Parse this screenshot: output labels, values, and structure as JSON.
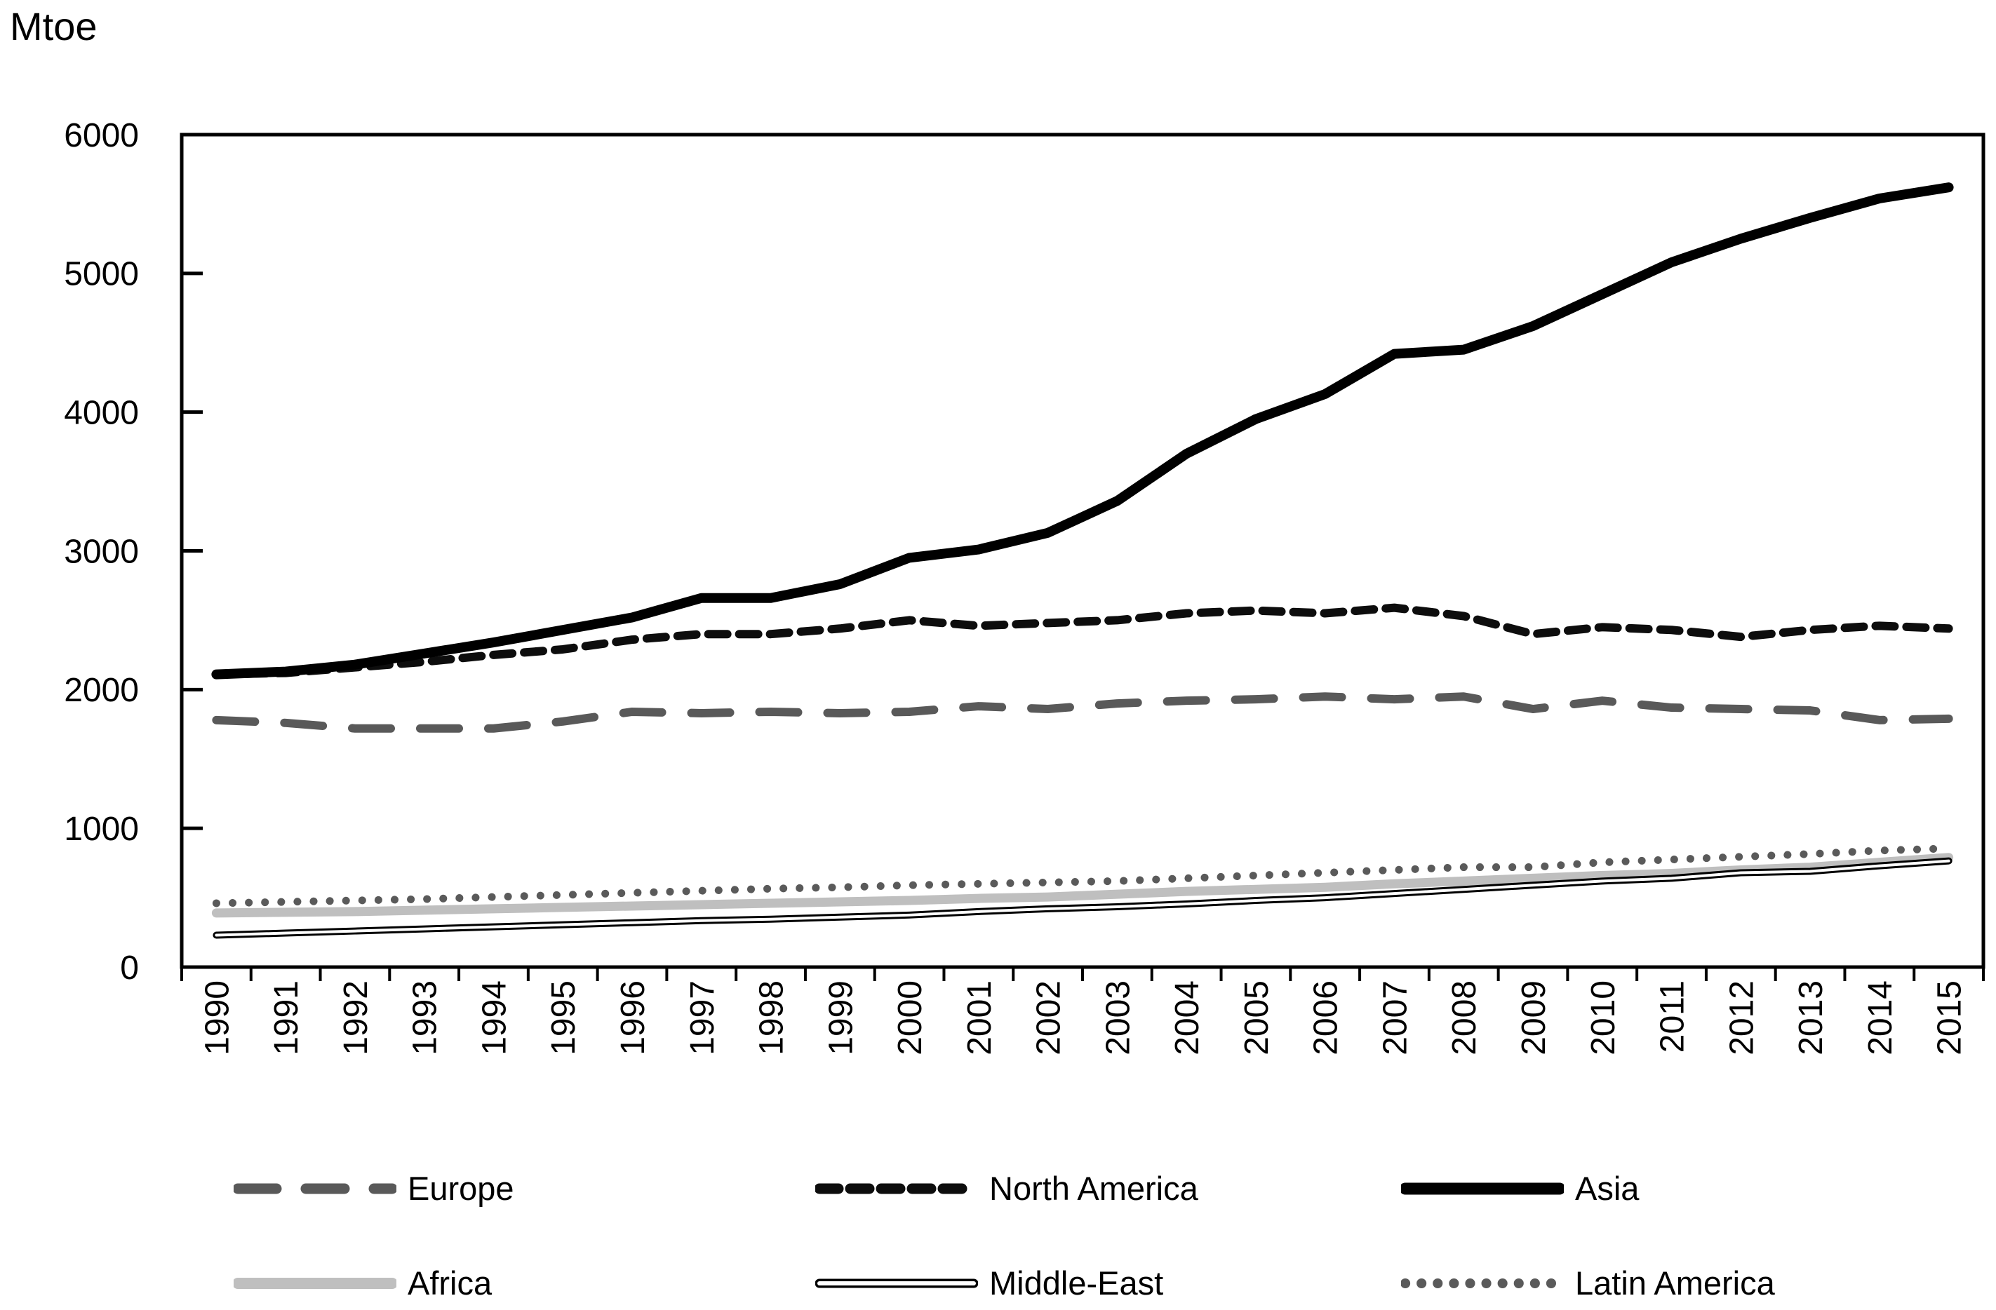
{
  "unit_label": "Mtoe",
  "chart_data": {
    "type": "line",
    "title": "",
    "ylabel": "Mtoe",
    "xlabel": "",
    "x": [
      "1990",
      "1991",
      "1992",
      "1993",
      "1994",
      "1995",
      "1996",
      "1997",
      "1998",
      "1999",
      "2000",
      "2001",
      "2002",
      "2003",
      "2004",
      "2005",
      "2006",
      "2007",
      "2008",
      "2009",
      "2010",
      "2011",
      "2012",
      "2013",
      "2014",
      "2015"
    ],
    "ylim": [
      0,
      6000
    ],
    "y_ticks": [
      0,
      1000,
      2000,
      3000,
      4000,
      5000,
      6000
    ],
    "grid": false,
    "legend_position": "bottom",
    "series": [
      {
        "name": "Africa",
        "color": "#bfbfbf",
        "style": "solid",
        "values": [
          390,
          395,
          400,
          410,
          420,
          430,
          440,
          450,
          460,
          470,
          480,
          495,
          505,
          525,
          545,
          560,
          575,
          600,
          620,
          640,
          660,
          675,
          700,
          720,
          755,
          790
        ]
      },
      {
        "name": "Middle-East",
        "color": "#000000",
        "style": "double",
        "values": [
          230,
          245,
          260,
          275,
          290,
          305,
          320,
          335,
          345,
          360,
          375,
          400,
          420,
          435,
          455,
          480,
          500,
          530,
          560,
          590,
          620,
          640,
          680,
          690,
          730,
          765
        ]
      },
      {
        "name": "Latin America",
        "color": "#5a5a5a",
        "style": "dotted",
        "values": [
          460,
          470,
          480,
          490,
          505,
          520,
          535,
          550,
          565,
          575,
          590,
          600,
          610,
          620,
          640,
          660,
          680,
          700,
          720,
          720,
          755,
          775,
          795,
          815,
          840,
          855
        ]
      },
      {
        "name": "Europe",
        "color": "#595959",
        "style": "dashed-long",
        "values": [
          1780,
          1760,
          1720,
          1720,
          1720,
          1770,
          1840,
          1830,
          1840,
          1830,
          1840,
          1880,
          1860,
          1900,
          1920,
          1930,
          1950,
          1930,
          1950,
          1860,
          1920,
          1870,
          1860,
          1850,
          1780,
          1790
        ]
      },
      {
        "name": "North America",
        "color": "#0d0d0d",
        "style": "dashed",
        "values": [
          2110,
          2120,
          2160,
          2200,
          2250,
          2290,
          2360,
          2400,
          2400,
          2440,
          2500,
          2460,
          2480,
          2500,
          2550,
          2570,
          2550,
          2590,
          2530,
          2400,
          2450,
          2430,
          2380,
          2430,
          2460,
          2440
        ]
      },
      {
        "name": "Asia",
        "color": "#000000",
        "style": "solid-thick",
        "values": [
          2110,
          2130,
          2180,
          2260,
          2340,
          2430,
          2520,
          2660,
          2660,
          2760,
          2950,
          3010,
          3130,
          3360,
          3700,
          3950,
          4130,
          4420,
          4450,
          4620,
          4850,
          5080,
          5250,
          5400,
          5540,
          5620
        ]
      }
    ]
  },
  "legend": {
    "items": [
      {
        "label": "Europe"
      },
      {
        "label": "North America"
      },
      {
        "label": "Asia"
      },
      {
        "label": "Africa"
      },
      {
        "label": "Middle-East"
      },
      {
        "label": "Latin America"
      }
    ]
  }
}
